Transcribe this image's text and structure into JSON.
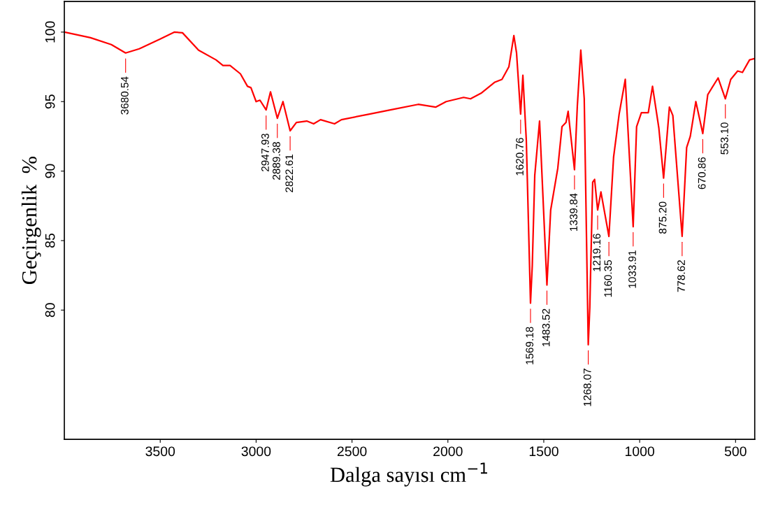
{
  "chart_data": {
    "type": "line",
    "xlabel": "Dalga sayısı cm$^{−1}$",
    "ylabel": "Geçirgenlik  %",
    "xlim": [
      4000,
      400
    ],
    "ylim": [
      70.7,
      102.2
    ],
    "xticks": [
      3500,
      3000,
      2500,
      2000,
      1500,
      1000,
      500
    ],
    "yticks": [
      100,
      95,
      90,
      85,
      80
    ],
    "grid": false,
    "legend": false,
    "marker": "none",
    "line_style": "solid",
    "series": [
      {
        "color": "#ff0000",
        "x": [
          4000,
          3864,
          3755,
          3680.54,
          3609,
          3500,
          3427,
          3384,
          3300,
          3209,
          3173,
          3136,
          3082,
          3045,
          3027,
          3000,
          2980,
          2947.93,
          2925,
          2889.38,
          2860,
          2822.61,
          2790,
          2736,
          2700,
          2664,
          2591,
          2555,
          2409,
          2300,
          2155,
          2064,
          2009,
          1918,
          1882,
          1827,
          1755,
          1718,
          1682,
          1656,
          1642,
          1620.76,
          1609,
          1591,
          1569.18,
          1560,
          1547,
          1522,
          1483.52,
          1464,
          1427,
          1405,
          1384,
          1373,
          1339.84,
          1325,
          1307,
          1289,
          1268.07,
          1260,
          1245,
          1235,
          1219.16,
          1202,
          1160.35,
          1136,
          1107,
          1075,
          1033.91,
          1016,
          991,
          955,
          933,
          900,
          875.2,
          845,
          827,
          778.62,
          755,
          736,
          707,
          670.86,
          645,
          591,
          553.1,
          525,
          489,
          464,
          427,
          400
        ],
        "values": [
          100.0,
          99.6,
          99.1,
          98.5,
          98.8,
          99.5,
          100.0,
          99.95,
          98.7,
          98.0,
          97.6,
          97.6,
          97.0,
          96.1,
          96.0,
          95.0,
          95.1,
          94.4,
          95.7,
          93.8,
          95.0,
          92.9,
          93.5,
          93.6,
          93.4,
          93.7,
          93.4,
          93.7,
          94.1,
          94.4,
          94.8,
          94.6,
          95.0,
          95.3,
          95.2,
          95.6,
          96.4,
          96.6,
          97.5,
          99.75,
          98.5,
          94.1,
          96.9,
          92.2,
          80.5,
          83.2,
          89.7,
          93.6,
          81.8,
          87.2,
          90.2,
          93.2,
          93.5,
          94.3,
          90.1,
          94.7,
          98.7,
          95.2,
          77.5,
          80.2,
          89.2,
          89.4,
          87.2,
          88.5,
          85.3,
          91.0,
          94.1,
          96.6,
          86.0,
          93.2,
          94.2,
          94.2,
          96.1,
          93.1,
          89.5,
          94.6,
          94.0,
          85.3,
          91.7,
          92.5,
          95.0,
          92.7,
          95.5,
          96.7,
          95.2,
          96.6,
          97.2,
          97.1,
          98.0,
          98.1
        ]
      }
    ],
    "annotations": [
      {
        "text": "3680.54",
        "x": 3680.54,
        "y": 98.5
      },
      {
        "text": "2947.93",
        "x": 2947.93,
        "y": 94.4
      },
      {
        "text": "2889.38",
        "x": 2889.38,
        "y": 93.8
      },
      {
        "text": "2822.61",
        "x": 2822.61,
        "y": 92.9
      },
      {
        "text": "1620.76",
        "x": 1620.76,
        "y": 94.1
      },
      {
        "text": "1569.18",
        "x": 1569.18,
        "y": 80.5
      },
      {
        "text": "1483.52",
        "x": 1483.52,
        "y": 81.8
      },
      {
        "text": "1339.84",
        "x": 1339.84,
        "y": 90.1
      },
      {
        "text": "1268.07",
        "x": 1268.07,
        "y": 77.5
      },
      {
        "text": "1219.16",
        "x": 1219.16,
        "y": 87.2
      },
      {
        "text": "1160.35",
        "x": 1160.35,
        "y": 85.3
      },
      {
        "text": "1033.91",
        "x": 1033.91,
        "y": 86.0
      },
      {
        "text": "875.20",
        "x": 875.2,
        "y": 89.5
      },
      {
        "text": "778.62",
        "x": 778.62,
        "y": 85.3
      },
      {
        "text": "670.86",
        "x": 670.86,
        "y": 92.7
      },
      {
        "text": "553.10",
        "x": 553.1,
        "y": 95.2
      }
    ]
  }
}
